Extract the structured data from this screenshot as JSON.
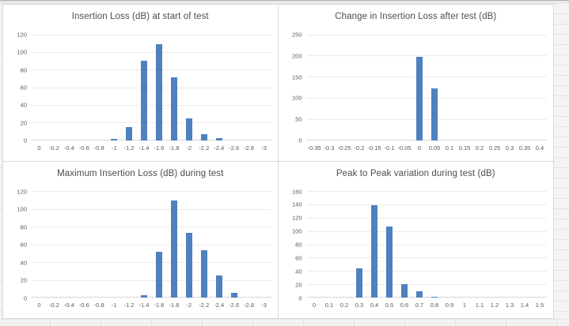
{
  "app": {
    "description_label": "Four histogram charts on an Excel worksheet"
  },
  "colors": {
    "bar_fill": "#4e81bd",
    "gridline": "#ebebeb",
    "axis_line": "#d6d6d6",
    "panel_border": "#d9d9d9",
    "tick_text": "#595959",
    "title_text": "#4d4d4d",
    "worksheet_bg": "#f2f2f2"
  },
  "chart_data": [
    {
      "type": "bar",
      "title": "Insertion Loss (dB) at start of test",
      "xlabel": "",
      "ylabel": "",
      "categories": [
        "0",
        "-0.2",
        "-0.4",
        "-0.6",
        "-0.8",
        "-1",
        "-1.2",
        "-1.4",
        "-1.6",
        "-1.8",
        "-2",
        "-2.2",
        "-2.4",
        "-2.6",
        "-2.8",
        "-3"
      ],
      "values": [
        0,
        0,
        0,
        0,
        0,
        1,
        15,
        90,
        109,
        71,
        25,
        7,
        2,
        0,
        0,
        0
      ],
      "ylim": [
        0,
        120
      ],
      "ytick_step": 20,
      "grid": true,
      "legend": "none"
    },
    {
      "type": "bar",
      "title": "Change in Insertion Loss after test (dB)",
      "xlabel": "",
      "ylabel": "",
      "categories": [
        "-0.35",
        "-0.3",
        "-0.25",
        "-0.2",
        "-0.15",
        "-0.1",
        "-0.05",
        "0",
        "0.05",
        "0.1",
        "0.15",
        "0.2",
        "0.25",
        "0.3",
        "0.35",
        "0.4"
      ],
      "values": [
        0,
        0,
        0,
        0,
        0,
        0,
        0,
        197,
        122,
        0,
        0,
        0,
        0,
        0,
        0,
        0
      ],
      "ylim": [
        0,
        250
      ],
      "ytick_step": 50,
      "grid": true,
      "legend": "none"
    },
    {
      "type": "bar",
      "title": "Maximum Insertion Loss (dB) during test",
      "xlabel": "",
      "ylabel": "",
      "categories": [
        "0",
        "-0.2",
        "-0.4",
        "-0.6",
        "-0.8",
        "-1",
        "-1.2",
        "-1.4",
        "-1.6",
        "-1.8",
        "-2",
        "-2.2",
        "-2.4",
        "-2.6",
        "-2.8",
        "-3"
      ],
      "values": [
        0,
        0,
        0,
        0,
        0,
        0,
        0,
        3,
        52,
        109,
        73,
        53,
        25,
        5,
        0,
        0
      ],
      "ylim": [
        0,
        120
      ],
      "ytick_step": 20,
      "grid": true,
      "legend": "none"
    },
    {
      "type": "bar",
      "title": "Peak to Peak variation during test (dB)",
      "xlabel": "",
      "ylabel": "",
      "categories": [
        "0",
        "0.1",
        "0.2",
        "0.3",
        "0.4",
        "0.5",
        "0.6",
        "0.7",
        "0.8",
        "0.9",
        "1",
        "1.1",
        "1.2",
        "1.3",
        "1.4",
        "1.5"
      ],
      "values": [
        0,
        0,
        0,
        44,
        139,
        107,
        20,
        9,
        1,
        0,
        0,
        0,
        0,
        0,
        0,
        0
      ],
      "ylim": [
        0,
        160
      ],
      "ytick_step": 20,
      "grid": true,
      "legend": "none"
    }
  ]
}
